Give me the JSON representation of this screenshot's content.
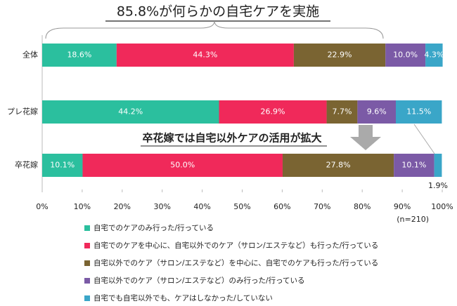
{
  "chart_data": {
    "type": "stacked-bar-horizontal",
    "title": "85.8%が何らかの自宅ケアを実施",
    "annotations": [
      "卒花嫁では自宅以外ケアの活用が拡大",
      "(n=210)"
    ],
    "categories": [
      "全体",
      "プレ花嫁",
      "卒花嫁"
    ],
    "series": [
      {
        "name": "自宅でのケアのみ行った/行っている",
        "color": "#2bbf9e",
        "values": [
          18.6,
          44.2,
          10.1
        ],
        "value_labels": [
          "18.6%",
          "44.2%",
          "10.1%"
        ]
      },
      {
        "name": "自宅でのケアを中心に、自宅以外でのケア（サロン/エステなど）も行った/行っている",
        "color": "#f0295a",
        "values": [
          44.3,
          26.9,
          50.0
        ],
        "value_labels": [
          "44.3%",
          "26.9%",
          "50.0%"
        ]
      },
      {
        "name": "自宅以外でのケア（サロン/エステなど）を中心に、自宅でのケアも行った/行っている",
        "color": "#7a6432",
        "values": [
          22.9,
          7.7,
          27.8
        ],
        "value_labels": [
          "22.9%",
          "7.7%",
          "27.8%"
        ]
      },
      {
        "name": "自宅以外でのケア（サロン/エステなど）のみ行った/行っている",
        "color": "#7b5aa6",
        "values": [
          10.0,
          9.6,
          10.1
        ],
        "value_labels": [
          "10.0%",
          "9.6%",
          "10.1%"
        ]
      },
      {
        "name": "自宅でも自宅以外でも、ケアはしなかった/していない",
        "color": "#3aa6c8",
        "values": [
          4.3,
          11.5,
          1.9
        ],
        "value_labels": [
          "4.3%",
          "11.5%",
          "1.9%"
        ]
      }
    ],
    "xlim": [
      0,
      100
    ],
    "xticks": [
      {
        "value": 0,
        "label": "0%"
      },
      {
        "value": 10,
        "label": "10%"
      },
      {
        "value": 20,
        "label": "20%"
      },
      {
        "value": 30,
        "label": "30%"
      },
      {
        "value": 40,
        "label": "40%"
      },
      {
        "value": 50,
        "label": "50%"
      },
      {
        "value": 60,
        "label": "60%"
      },
      {
        "value": 70,
        "label": "70%"
      },
      {
        "value": 80,
        "label": "80%"
      },
      {
        "value": 90,
        "label": "90%"
      },
      {
        "value": 100,
        "label": "100%"
      }
    ]
  }
}
